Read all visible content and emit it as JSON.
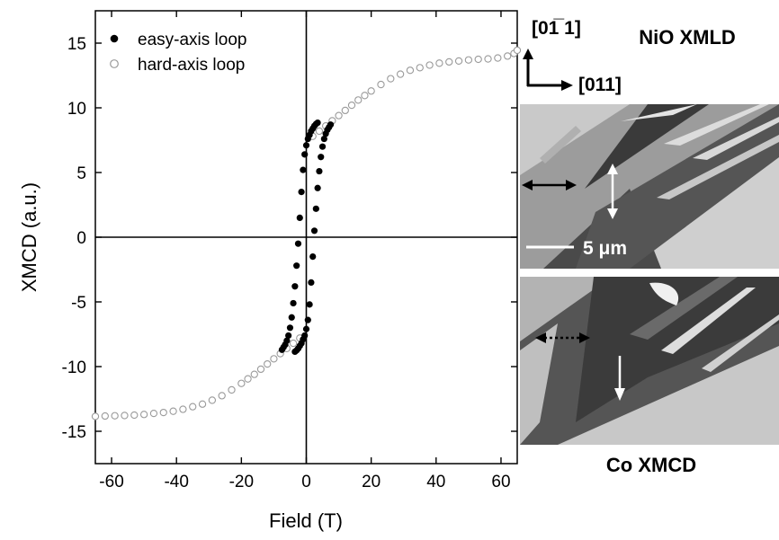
{
  "chart_data": {
    "type": "scatter",
    "xlabel": "Field (T)",
    "ylabel": "XMCD (a.u.)",
    "xlim": [
      -65,
      65
    ],
    "ylim": [
      -17.5,
      17.5
    ],
    "xticks": [
      -60,
      -40,
      -20,
      0,
      20,
      40,
      60
    ],
    "yticks": [
      -15,
      -10,
      -5,
      0,
      5,
      10,
      15
    ],
    "legend_position": "top-left",
    "grid": false,
    "series": [
      {
        "name": "easy-axis loop",
        "marker": "filled-circle",
        "color": "#000000",
        "points": [
          [
            -7.5,
            -8.7
          ],
          [
            -7.0,
            -8.5
          ],
          [
            -6.5,
            -8.3
          ],
          [
            -6.0,
            -8.0
          ],
          [
            -5.5,
            -7.6
          ],
          [
            -5.0,
            -7.0
          ],
          [
            -4.5,
            -6.2
          ],
          [
            -4.0,
            -5.1
          ],
          [
            -3.5,
            -3.8
          ],
          [
            -3.0,
            -2.2
          ],
          [
            -2.5,
            -0.5
          ],
          [
            -2.0,
            1.5
          ],
          [
            -1.5,
            3.5
          ],
          [
            -1.0,
            5.2
          ],
          [
            -0.5,
            6.4
          ],
          [
            0.0,
            7.1
          ],
          [
            0.5,
            7.6
          ],
          [
            1.0,
            7.9
          ],
          [
            1.5,
            8.2
          ],
          [
            2.0,
            8.4
          ],
          [
            2.5,
            8.6
          ],
          [
            3.0,
            8.75
          ],
          [
            3.5,
            8.85
          ],
          [
            -3.5,
            -8.85
          ],
          [
            -3.0,
            -8.75
          ],
          [
            -2.5,
            -8.6
          ],
          [
            -2.0,
            -8.4
          ],
          [
            -1.5,
            -8.2
          ],
          [
            -1.0,
            -7.9
          ],
          [
            -0.5,
            -7.6
          ],
          [
            0.0,
            -7.1
          ],
          [
            0.5,
            -6.4
          ],
          [
            1.0,
            -5.2
          ],
          [
            1.5,
            -3.5
          ],
          [
            2.0,
            -1.5
          ],
          [
            2.5,
            0.5
          ],
          [
            3.0,
            2.2
          ],
          [
            3.5,
            3.8
          ],
          [
            4.0,
            5.1
          ],
          [
            4.5,
            6.2
          ],
          [
            5.0,
            7.0
          ],
          [
            5.5,
            7.6
          ],
          [
            6.0,
            8.0
          ],
          [
            6.5,
            8.3
          ],
          [
            7.0,
            8.5
          ],
          [
            7.5,
            8.7
          ]
        ]
      },
      {
        "name": "hard-axis loop",
        "marker": "open-circle",
        "color": "#9a9a9a",
        "points": [
          [
            -65,
            -13.85
          ],
          [
            -62,
            -13.82
          ],
          [
            -59,
            -13.8
          ],
          [
            -56,
            -13.78
          ],
          [
            -53,
            -13.75
          ],
          [
            -50,
            -13.7
          ],
          [
            -47,
            -13.62
          ],
          [
            -44,
            -13.55
          ],
          [
            -41,
            -13.45
          ],
          [
            -38,
            -13.3
          ],
          [
            -35,
            -13.1
          ],
          [
            -32,
            -12.9
          ],
          [
            -29,
            -12.6
          ],
          [
            -26,
            -12.25
          ],
          [
            -23,
            -11.8
          ],
          [
            -20,
            -11.3
          ],
          [
            -18,
            -10.95
          ],
          [
            -16,
            -10.6
          ],
          [
            -14,
            -10.2
          ],
          [
            -12,
            -9.8
          ],
          [
            -10,
            -9.4
          ],
          [
            -8,
            -9.0
          ],
          [
            -6,
            -8.6
          ],
          [
            -4,
            -8.2
          ],
          [
            -2,
            -7.8
          ],
          [
            2,
            7.8
          ],
          [
            4,
            8.2
          ],
          [
            6,
            8.6
          ],
          [
            8,
            9.0
          ],
          [
            10,
            9.4
          ],
          [
            12,
            9.8
          ],
          [
            14,
            10.2
          ],
          [
            16,
            10.6
          ],
          [
            18,
            10.95
          ],
          [
            20,
            11.3
          ],
          [
            23,
            11.8
          ],
          [
            26,
            12.25
          ],
          [
            29,
            12.6
          ],
          [
            32,
            12.9
          ],
          [
            35,
            13.1
          ],
          [
            38,
            13.3
          ],
          [
            41,
            13.45
          ],
          [
            44,
            13.55
          ],
          [
            47,
            13.62
          ],
          [
            50,
            13.7
          ],
          [
            53,
            13.75
          ],
          [
            56,
            13.78
          ],
          [
            59,
            13.85
          ],
          [
            62,
            14.0
          ],
          [
            64,
            14.2
          ],
          [
            65,
            14.45
          ]
        ]
      }
    ]
  },
  "images": {
    "top": {
      "title": "NiO XMLD",
      "axis_label_vertical": "[01̅ 1]",
      "axis_label_horizontal": "[011]",
      "scale_bar_label": "5 μm"
    },
    "bottom": {
      "title": "Co XMCD"
    }
  }
}
